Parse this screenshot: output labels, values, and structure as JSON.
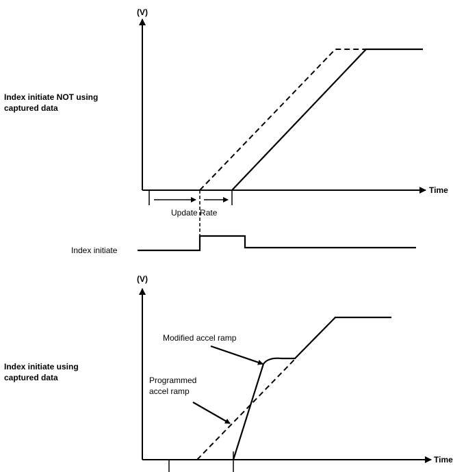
{
  "top_diagram": {
    "y_label": "(V)",
    "x_label": "Time",
    "title": "Index initiate NOT using captured data",
    "update_rate_label": "Update Rate",
    "signal_label": "Index initiate"
  },
  "bottom_diagram": {
    "y_label": "(V)",
    "x_label": "Time",
    "title": "Index initiate using captured data",
    "modified_label": "Modified accel ramp",
    "programmed_label": "Programmed accel ramp"
  }
}
